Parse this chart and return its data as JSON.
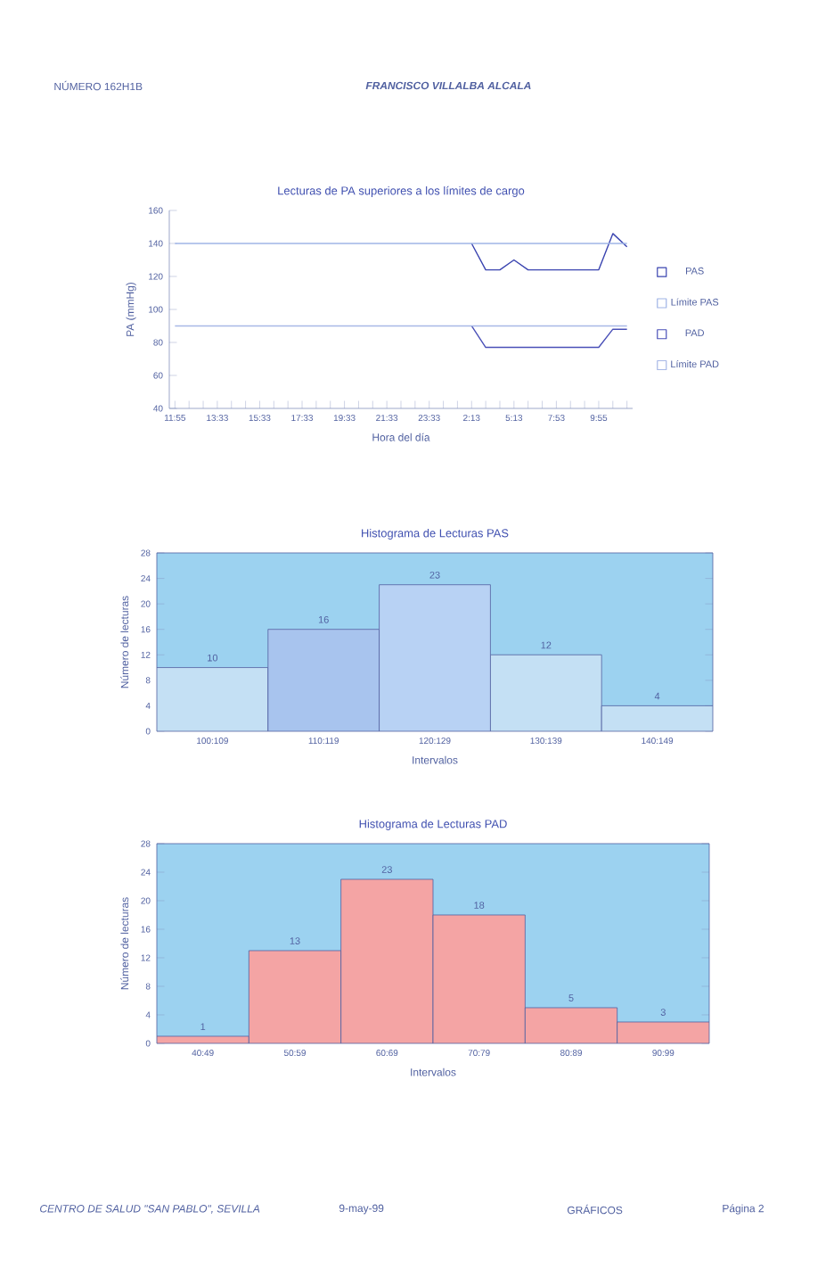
{
  "chart_data": [
    {
      "type": "line",
      "title": "Lecturas de PA superiores a los límites de cargo",
      "xlabel": "Hora del día",
      "ylabel": "PA (mmHg)",
      "categories": [
        "11:55",
        null,
        null,
        "13:33",
        null,
        null,
        "15:33",
        null,
        null,
        "17:33",
        null,
        null,
        "19:33",
        null,
        null,
        "21:33",
        null,
        null,
        "23:33",
        null,
        null,
        "2:13",
        null,
        null,
        "5:13",
        null,
        null,
        "7:53",
        null,
        null,
        "9:55",
        null,
        null
      ],
      "series": [
        {
          "name": "PAS",
          "color": "#3a44b0",
          "values": [
            null,
            null,
            null,
            null,
            null,
            null,
            null,
            null,
            null,
            null,
            null,
            null,
            null,
            null,
            null,
            null,
            null,
            null,
            null,
            null,
            null,
            140,
            124,
            124,
            130,
            124,
            124,
            124,
            124,
            124,
            124,
            146,
            138
          ]
        },
        {
          "name": "Límite PAS",
          "color": "#9fb4e6",
          "values": [
            140,
            140,
            140,
            140,
            140,
            140,
            140,
            140,
            140,
            140,
            140,
            140,
            140,
            140,
            140,
            140,
            140,
            140,
            140,
            140,
            140,
            140,
            140,
            140,
            140,
            140,
            140,
            140,
            140,
            140,
            140,
            140,
            140
          ]
        },
        {
          "name": "PAD",
          "color": "#4a50b8",
          "values": [
            null,
            null,
            null,
            null,
            null,
            null,
            null,
            null,
            null,
            null,
            null,
            null,
            null,
            null,
            null,
            null,
            null,
            null,
            null,
            null,
            null,
            90,
            77,
            77,
            77,
            77,
            77,
            77,
            77,
            77,
            77,
            88,
            88
          ]
        },
        {
          "name": "Límite PAD",
          "color": "#a8b8e6",
          "values": [
            90,
            90,
            90,
            90,
            90,
            90,
            90,
            90,
            90,
            90,
            90,
            90,
            90,
            90,
            90,
            90,
            90,
            90,
            90,
            90,
            90,
            90,
            90,
            90,
            90,
            90,
            90,
            90,
            90,
            90,
            90,
            90,
            90
          ]
        }
      ],
      "ylim": [
        40,
        160
      ],
      "yticks": [
        40,
        60,
        80,
        100,
        120,
        140,
        160
      ],
      "legend": "right",
      "marker": "none",
      "line_style": "solid",
      "annotations": [
        "NÚMERO 162H1B",
        "FRANCISCO VILLALBA ALCALA"
      ]
    },
    {
      "type": "bar",
      "title": "Histograma de Lecturas PAS",
      "xlabel": "Intervalos",
      "ylabel": "Número de lecturas",
      "categories": [
        "100:109",
        "110:119",
        "120:129",
        "130:139",
        "140:149"
      ],
      "values": [
        10,
        16,
        23,
        12,
        4
      ],
      "colors": [
        "#c4e0f4",
        "#a8c4ee",
        "#b8d2f4",
        "#c4e0f4",
        "#c4e0f4"
      ],
      "ylim": [
        0,
        28
      ],
      "yticks": [
        0,
        4,
        8,
        12,
        16,
        20,
        24,
        28
      ],
      "data_labels": true
    },
    {
      "type": "bar",
      "title": "Histograma de Lecturas PAD",
      "xlabel": "Intervalos",
      "ylabel": "Número de lecturas",
      "categories": [
        "40:49",
        "50:59",
        "60:69",
        "70:79",
        "80:89",
        "90:99"
      ],
      "values": [
        1,
        13,
        23,
        18,
        5,
        3
      ],
      "color": "#f4a4a4",
      "ylim": [
        0,
        28
      ],
      "yticks": [
        0,
        4,
        8,
        12,
        16,
        20,
        24,
        28
      ],
      "data_labels": true,
      "annotations": [
        "CENTRO DE SALUD \"SAN PABLO\", SEVILLA",
        "9-may-99",
        "GRÁFICOS",
        "Página 2"
      ]
    }
  ]
}
